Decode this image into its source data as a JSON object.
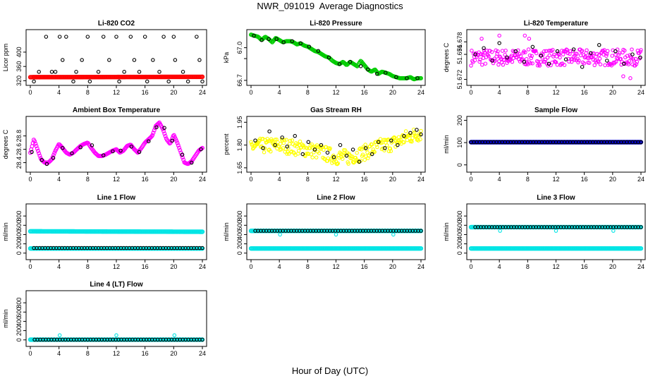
{
  "figure": {
    "title": "NWR_091019  Average Diagnostics",
    "xlabel": "Hour of Day (UTC)"
  },
  "chart_data": [
    {
      "type": "scatter",
      "title": "Li-820 CO2",
      "ylabel": "Licor ppm",
      "xlim": [
        0,
        24
      ],
      "ylim": [
        315,
        455
      ],
      "xticks": [
        0,
        4,
        8,
        12,
        16,
        20,
        24
      ],
      "yticks": [
        320,
        360,
        400
      ],
      "series": [
        {
          "color": "#ff0000",
          "marker": "dense",
          "x": [
            0,
            24
          ],
          "y": [
            330,
            331
          ]
        },
        {
          "color": "#000000",
          "marker": "circle",
          "x": [
            0.5,
            1.2,
            2.2,
            3.0,
            3.5,
            4.1,
            4.5,
            5.0,
            6.0,
            6.4,
            7.2,
            8.0,
            8.3,
            9.5,
            10.2,
            11.0,
            12.0,
            12.4,
            13.1,
            14.0,
            14.5,
            15.2,
            16.0,
            16.3,
            17.1,
            18.0,
            18.6,
            19.3,
            20.0,
            20.2,
            21.3,
            22.0,
            23.2,
            23.6,
            24.0
          ],
          "y": [
            318,
            345,
            443,
            345,
            345,
            443,
            378,
            443,
            318,
            345,
            378,
            443,
            318,
            345,
            443,
            378,
            443,
            318,
            345,
            443,
            378,
            345,
            443,
            318,
            378,
            345,
            443,
            318,
            443,
            378,
            345,
            318,
            443,
            378,
            318
          ]
        }
      ]
    },
    {
      "type": "scatter",
      "title": "Li-820 Pressure",
      "ylabel": "kPa",
      "xlim": [
        0,
        24
      ],
      "ylim": [
        66.68,
        67.14
      ],
      "xticks": [
        0,
        4,
        8,
        12,
        16,
        20,
        24
      ],
      "yticks": [
        66.7,
        66.9,
        67.0
      ],
      "yticklabels": [
        "66.7",
        "",
        "67.0"
      ],
      "series": [
        {
          "color": "#00cc00",
          "marker": "line",
          "x": [
            0,
            0.5,
            1,
            1.5,
            2,
            2.5,
            3,
            3.5,
            4,
            4.5,
            5,
            5.5,
            6,
            6.5,
            7,
            7.5,
            8,
            8.5,
            9,
            9.5,
            10,
            10.5,
            11,
            11.5,
            12,
            12.5,
            13,
            13.5,
            14,
            14.5,
            15,
            15.5,
            16,
            16.5,
            17,
            17.5,
            18,
            18.5,
            19,
            19.5,
            20,
            20.5,
            21,
            21.5,
            22,
            22.5,
            23,
            23.5,
            24
          ],
          "y": [
            67.12,
            67.11,
            67.1,
            67.07,
            67.1,
            67.08,
            67.05,
            67.09,
            67.07,
            67.05,
            67.06,
            67.06,
            67.05,
            67.03,
            67.04,
            67.02,
            67.01,
            66.99,
            66.97,
            66.96,
            66.94,
            66.92,
            66.91,
            66.88,
            66.86,
            66.85,
            66.87,
            66.84,
            66.87,
            66.85,
            66.83,
            66.88,
            66.84,
            66.8,
            66.78,
            66.8,
            66.76,
            66.78,
            66.77,
            66.76,
            66.74,
            66.73,
            66.72,
            66.72,
            66.72,
            66.73,
            66.71,
            66.72,
            66.72
          ]
        },
        {
          "color": "#000000",
          "marker": "circle",
          "x": [
            0.4,
            1.5,
            2.5,
            3.6,
            4.6,
            5.8,
            7.0,
            8.2,
            9.5,
            11.0,
            12.5,
            14.0,
            15.5,
            16.5,
            17.8,
            19.0,
            20.5,
            22.0,
            23.5
          ],
          "y": [
            67.11,
            67.07,
            67.08,
            67.08,
            67.05,
            67.06,
            67.04,
            67.01,
            66.97,
            66.91,
            66.85,
            66.87,
            66.83,
            66.8,
            66.76,
            66.77,
            66.73,
            66.72,
            66.72
          ]
        }
      ]
    },
    {
      "type": "scatter",
      "title": "Li-820 Temperature",
      "ylabel": "degrees C",
      "xlim": [
        0,
        24
      ],
      "ylim": [
        51.6715,
        51.6795
      ],
      "xticks": [
        0,
        4,
        8,
        12,
        16,
        20,
        24
      ],
      "yticks": [
        51.672,
        51.676,
        51.678
      ],
      "yticklabels": [
        "51.672",
        "51.676",
        "51.678"
      ],
      "series": [
        {
          "color": "#ff00ff",
          "marker": "scatter-band",
          "x": [
            0,
            24
          ],
          "y": [
            51.6755,
            51.6755
          ],
          "spread": 0.0013
        },
        {
          "color": "#ff00ff",
          "marker": "circle",
          "x": [
            1.5,
            4.0,
            7.6,
            8.2,
            21.5,
            22.5
          ],
          "y": [
            51.6785,
            51.679,
            51.679,
            51.6785,
            51.6725,
            51.6722
          ]
        },
        {
          "color": "#000000",
          "marker": "circle",
          "x": [
            0.6,
            1.8,
            3.0,
            4.0,
            5.1,
            6.3,
            7.5,
            8.7,
            9.9,
            11.0,
            12.2,
            13.4,
            14.5,
            15.7,
            16.9,
            18.1,
            19.2,
            20.4,
            21.6,
            22.8,
            23.9
          ],
          "y": [
            51.676,
            51.677,
            51.675,
            51.6778,
            51.6755,
            51.6765,
            51.6748,
            51.6772,
            51.6758,
            51.6745,
            51.6765,
            51.6752,
            51.6768,
            51.674,
            51.6762,
            51.6775,
            51.675,
            51.6765,
            51.6745,
            51.676,
            51.6755
          ]
        }
      ]
    },
    {
      "type": "scatter",
      "title": "Ambient Box Temperature",
      "ylabel": "degrees C",
      "xlim": [
        0,
        24
      ],
      "ylim": [
        28.3,
        29.05
      ],
      "xticks": [
        0,
        4,
        8,
        12,
        16,
        20,
        24
      ],
      "yticks": [
        28.4,
        28.6,
        28.8
      ],
      "yticklabels": [
        "28.4",
        "28.6",
        "28.8"
      ],
      "series": [
        {
          "color": "#ff00ff",
          "marker": "line",
          "x": [
            0,
            0.5,
            1,
            1.5,
            2,
            2.5,
            3,
            3.5,
            4,
            4.5,
            5,
            5.5,
            6,
            6.5,
            7,
            7.5,
            8,
            8.5,
            9,
            9.5,
            10,
            10.5,
            11,
            11.5,
            12,
            12.5,
            13,
            13.5,
            14,
            14.5,
            15,
            15.5,
            16,
            16.5,
            17,
            17.5,
            18,
            18.5,
            19,
            19.5,
            20,
            20.5,
            21,
            21.5,
            22,
            22.5,
            23,
            23.5,
            24
          ],
          "y": [
            28.55,
            28.75,
            28.6,
            28.45,
            28.4,
            28.4,
            28.45,
            28.58,
            28.68,
            28.62,
            28.55,
            28.52,
            28.55,
            28.6,
            28.65,
            28.68,
            28.7,
            28.62,
            28.55,
            28.5,
            28.5,
            28.52,
            28.55,
            28.58,
            28.6,
            28.55,
            28.58,
            28.65,
            28.67,
            28.6,
            28.55,
            28.62,
            28.7,
            28.75,
            28.8,
            28.95,
            29.0,
            28.9,
            28.75,
            28.68,
            28.82,
            28.7,
            28.55,
            28.4,
            28.38,
            28.42,
            28.5,
            28.58,
            28.62
          ]
        },
        {
          "color": "#000000",
          "marker": "circle",
          "x": [
            0.2,
            1.6,
            2.3,
            3.2,
            4.5,
            5.8,
            7.0,
            8.6,
            10.2,
            11.5,
            12.6,
            14.1,
            15.2,
            16.5,
            17.6,
            18.7,
            19.8,
            21.2,
            22.5,
            23.8
          ],
          "y": [
            28.56,
            28.44,
            28.38,
            28.47,
            28.62,
            28.54,
            28.63,
            28.66,
            28.51,
            28.57,
            28.58,
            28.64,
            28.56,
            28.72,
            28.93,
            28.92,
            28.73,
            28.52,
            28.4,
            28.6
          ]
        }
      ]
    },
    {
      "type": "scatter",
      "title": "Gas Stream RH",
      "ylabel": "percent",
      "xlim": [
        0,
        24
      ],
      "ylim": [
        1.64,
        1.97
      ],
      "xticks": [
        0,
        4,
        8,
        12,
        16,
        20,
        24
      ],
      "yticks": [
        1.65,
        1.8,
        1.95
      ],
      "yticklabels": [
        "1.65",
        "1.80",
        "1.95"
      ],
      "series": [
        {
          "color": "#ffff00",
          "marker": "scatter-band",
          "x": [
            0,
            4,
            8,
            10,
            12,
            14,
            16,
            18,
            20,
            22,
            24
          ],
          "y": [
            1.79,
            1.8,
            1.77,
            1.75,
            1.72,
            1.72,
            1.75,
            1.79,
            1.81,
            1.85,
            1.88
          ],
          "spread": 0.05
        },
        {
          "color": "#000000",
          "marker": "circle",
          "x": [
            0.6,
            1.7,
            2.6,
            3.4,
            4.4,
            5.1,
            6.2,
            7.3,
            8.1,
            9.0,
            9.9,
            10.8,
            11.7,
            12.6,
            13.5,
            14.4,
            15.3,
            16.2,
            17.1,
            18.0,
            18.9,
            19.8,
            20.7,
            21.6,
            22.5,
            23.4,
            24.0
          ],
          "y": [
            1.83,
            1.78,
            1.89,
            1.8,
            1.85,
            1.79,
            1.86,
            1.74,
            1.82,
            1.77,
            1.8,
            1.75,
            1.72,
            1.8,
            1.73,
            1.77,
            1.69,
            1.78,
            1.74,
            1.82,
            1.78,
            1.83,
            1.8,
            1.86,
            1.88,
            1.9,
            1.87
          ]
        }
      ]
    },
    {
      "type": "scatter",
      "title": "Sample Flow",
      "ylabel": "ml/min",
      "xlim": [
        0,
        24
      ],
      "ylim": [
        -20,
        205
      ],
      "xticks": [
        0,
        4,
        8,
        12,
        16,
        20,
        24
      ],
      "yticks": [
        0,
        100,
        200
      ],
      "series": [
        {
          "color": "#0000cc",
          "marker": "dense",
          "x": [
            0,
            24
          ],
          "y": [
            102,
            102
          ]
        },
        {
          "color": "#000000",
          "marker": "circle-row",
          "x": [
            0,
            24
          ],
          "y": [
            102,
            102
          ]
        }
      ]
    },
    {
      "type": "scatter",
      "title": "Line 1 Flow",
      "ylabel": "ml/min",
      "xlim": [
        0,
        24
      ],
      "ylim": [
        -80,
        1000
      ],
      "xticks": [
        0,
        4,
        8,
        12,
        16,
        20,
        24
      ],
      "yticks": [
        0,
        200,
        400,
        600,
        800
      ],
      "series": [
        {
          "color": "#00e5e5",
          "marker": "dense",
          "x": [
            0,
            24
          ],
          "y": [
            470,
            460
          ]
        },
        {
          "color": "#00e5e5",
          "marker": "dense",
          "x": [
            0,
            24
          ],
          "y": [
            100,
            100
          ]
        },
        {
          "color": "#000000",
          "marker": "circle-row",
          "x": [
            0.5,
            24
          ],
          "y": [
            110,
            110
          ]
        }
      ]
    },
    {
      "type": "scatter",
      "title": "Line 2 Flow",
      "ylabel": "ml/min",
      "xlim": [
        0,
        24
      ],
      "ylim": [
        -80,
        1000
      ],
      "xticks": [
        0,
        4,
        8,
        12,
        16,
        20,
        24
      ],
      "yticks": [
        0,
        200,
        400,
        600,
        800
      ],
      "series": [
        {
          "color": "#00e5e5",
          "marker": "dense",
          "x": [
            0,
            24
          ],
          "y": [
            100,
            100
          ]
        },
        {
          "color": "#00e5e5",
          "marker": "dense",
          "x": [
            0,
            24
          ],
          "y": [
            480,
            480
          ]
        },
        {
          "color": "#000000",
          "marker": "circle-row",
          "x": [
            0.6,
            24
          ],
          "y": [
            480,
            480
          ]
        },
        {
          "color": "#00e5e5",
          "marker": "circle",
          "x": [
            4.1,
            12.0,
            20.1
          ],
          "y": [
            400,
            400,
            400
          ]
        }
      ]
    },
    {
      "type": "scatter",
      "title": "Line 3 Flow",
      "ylabel": "ml/min",
      "xlim": [
        0,
        24
      ],
      "ylim": [
        -80,
        1000
      ],
      "xticks": [
        0,
        4,
        8,
        12,
        16,
        20,
        24
      ],
      "yticks": [
        0,
        200,
        400,
        600,
        800
      ],
      "series": [
        {
          "color": "#00e5e5",
          "marker": "dense",
          "x": [
            0,
            24
          ],
          "y": [
            100,
            100
          ]
        },
        {
          "color": "#00e5e5",
          "marker": "dense",
          "x": [
            0,
            24
          ],
          "y": [
            560,
            560
          ]
        },
        {
          "color": "#000000",
          "marker": "circle-row",
          "x": [
            0.6,
            24
          ],
          "y": [
            560,
            560
          ]
        },
        {
          "color": "#00e5e5",
          "marker": "circle",
          "x": [
            4.1,
            12.0,
            20.1
          ],
          "y": [
            480,
            480,
            480
          ]
        }
      ]
    },
    {
      "type": "scatter",
      "title": "Line 4 (LT) Flow",
      "ylabel": "ml/min",
      "xlim": [
        0,
        24
      ],
      "ylim": [
        -80,
        1000
      ],
      "xticks": [
        0,
        4,
        8,
        12,
        16,
        20,
        24
      ],
      "yticks": [
        0,
        200,
        400,
        600,
        800
      ],
      "series": [
        {
          "color": "#00e5e5",
          "marker": "dense",
          "x": [
            0,
            24
          ],
          "y": [
            5,
            5
          ]
        },
        {
          "color": "#000000",
          "marker": "circle-row",
          "x": [
            0.6,
            24
          ],
          "y": [
            5,
            5
          ]
        },
        {
          "color": "#00e5e5",
          "marker": "circle",
          "x": [
            4.1,
            12.0,
            20.1
          ],
          "y": [
            100,
            100,
            100
          ]
        }
      ]
    }
  ]
}
